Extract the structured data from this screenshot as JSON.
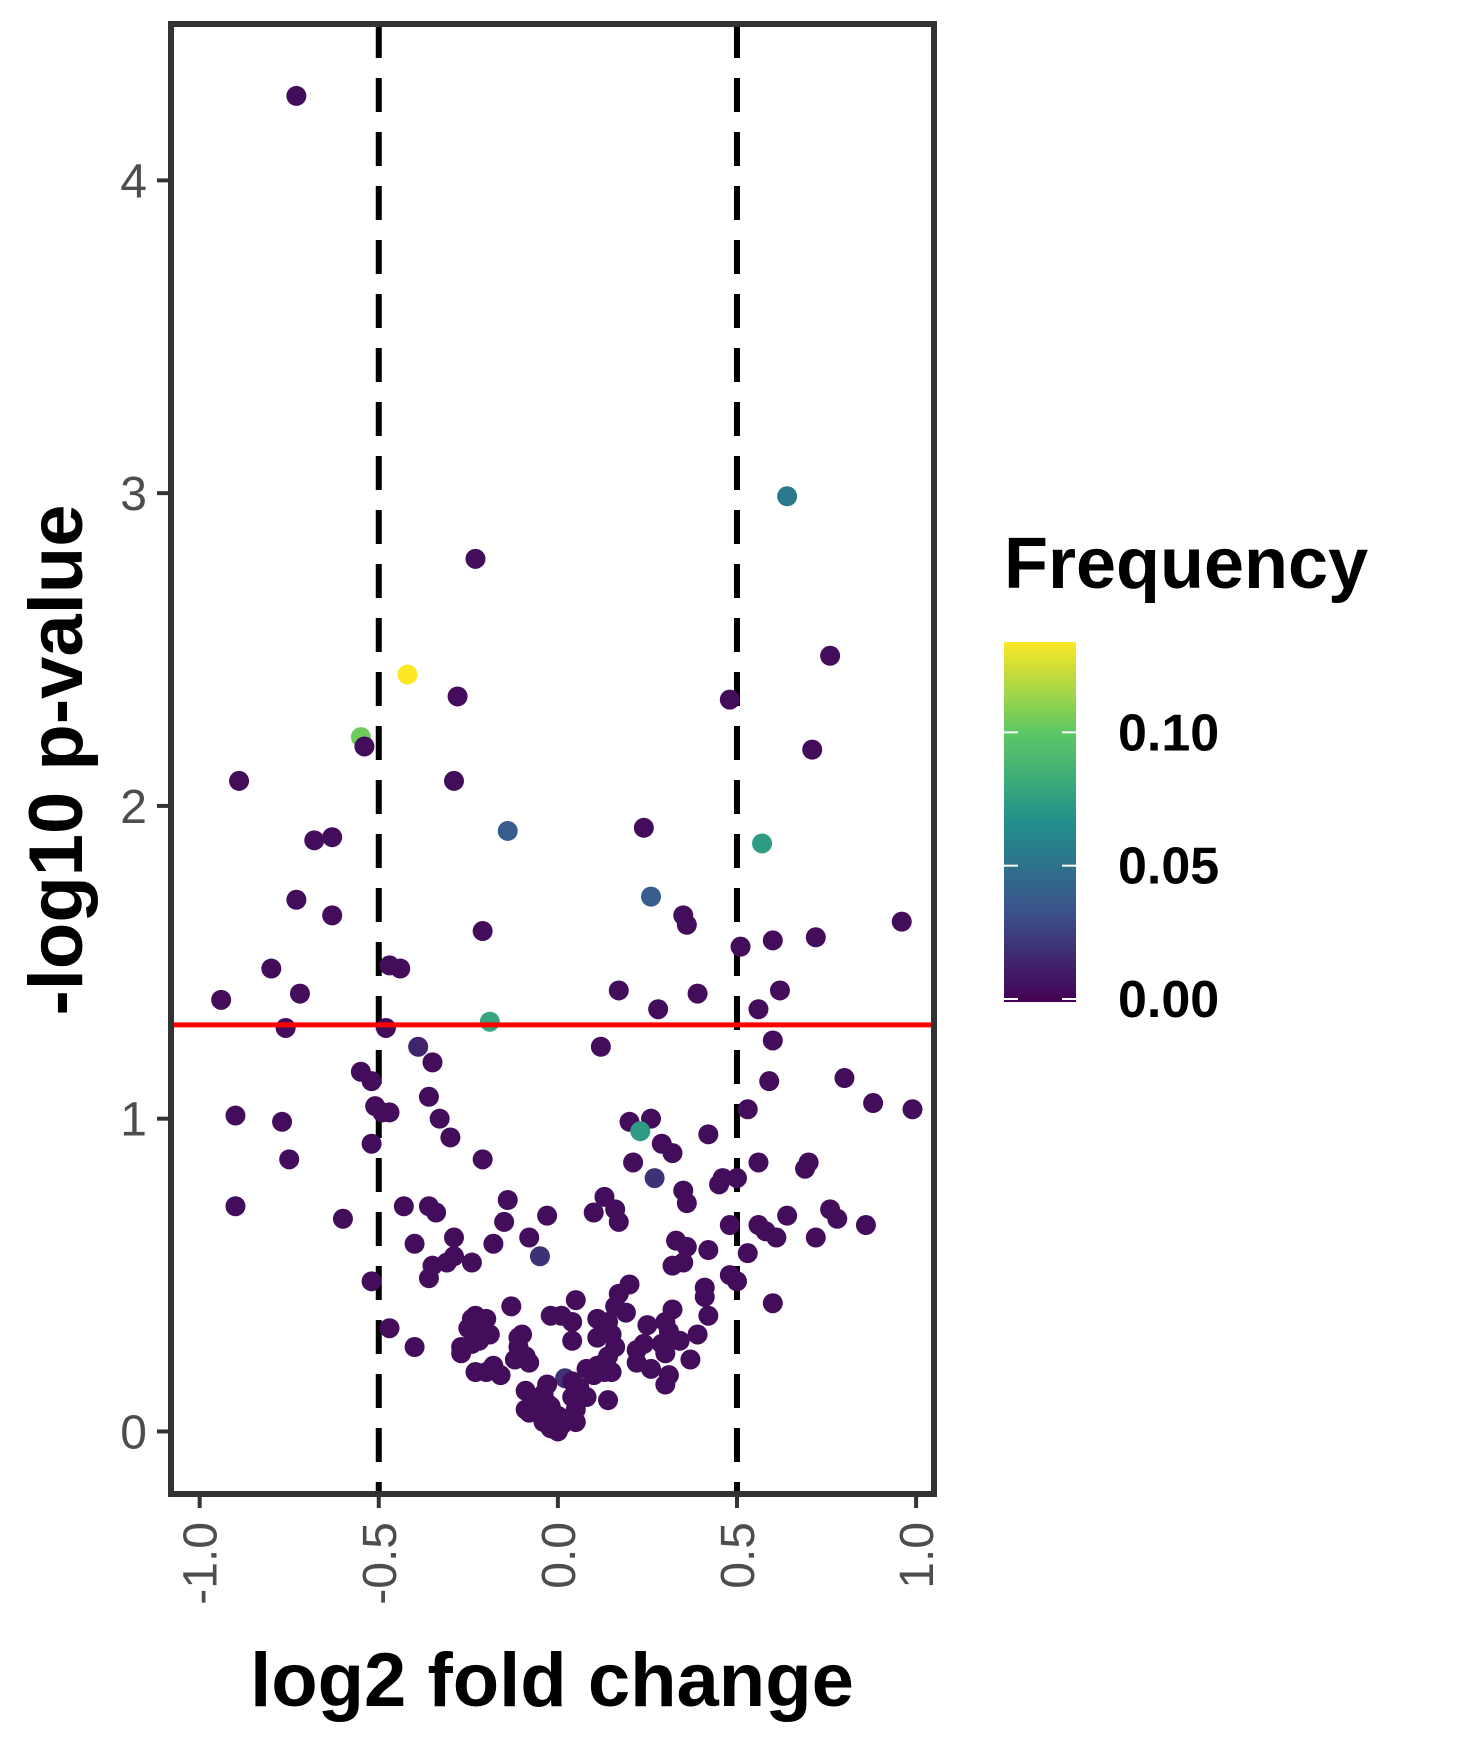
{
  "chart_data": {
    "type": "scatter",
    "xlabel": "log2 fold change",
    "ylabel": "-log10 p-value",
    "xlim": [
      -1.08,
      1.05
    ],
    "ylim": [
      -0.2,
      4.5
    ],
    "x_ticks": [
      -1.0,
      -0.5,
      0.0,
      0.5,
      1.0
    ],
    "x_tick_labels": [
      "-1.0",
      "-0.5",
      "0.0",
      "0.5",
      "1.0"
    ],
    "y_ticks": [
      0,
      1,
      2,
      3,
      4
    ],
    "y_tick_labels": [
      "0",
      "1",
      "2",
      "3",
      "4"
    ],
    "grid": false,
    "reference_lines": {
      "vertical_dashed": [
        -0.5,
        0.5
      ],
      "horizontal_red": 1.3,
      "vertical_color": "#000000",
      "horizontal_color": "#ff0000"
    },
    "color_scale": {
      "title": "Frequency",
      "palette": "viridis",
      "min": 0.0,
      "max": 0.135,
      "ticks": [
        0.0,
        0.05,
        0.1
      ],
      "tick_labels": [
        "0.00",
        "0.05",
        "0.10"
      ],
      "colors": [
        "#440154",
        "#3b528b",
        "#21908c",
        "#5dc863",
        "#fde725"
      ]
    },
    "points": [
      {
        "x": -0.73,
        "y": 4.27,
        "f": 0.005
      },
      {
        "x": 0.64,
        "y": 2.99,
        "f": 0.055
      },
      {
        "x": -0.23,
        "y": 2.79,
        "f": 0.005
      },
      {
        "x": 0.76,
        "y": 2.48,
        "f": 0.005
      },
      {
        "x": -0.42,
        "y": 2.42,
        "f": 0.135
      },
      {
        "x": -0.28,
        "y": 2.35,
        "f": 0.005
      },
      {
        "x": 0.48,
        "y": 2.34,
        "f": 0.005
      },
      {
        "x": -0.55,
        "y": 2.22,
        "f": 0.105
      },
      {
        "x": -0.54,
        "y": 2.19,
        "f": 0.005
      },
      {
        "x": 0.71,
        "y": 2.18,
        "f": 0.005
      },
      {
        "x": -0.89,
        "y": 2.08,
        "f": 0.005
      },
      {
        "x": -0.29,
        "y": 2.08,
        "f": 0.005
      },
      {
        "x": 0.24,
        "y": 1.93,
        "f": 0.005
      },
      {
        "x": -0.14,
        "y": 1.92,
        "f": 0.04
      },
      {
        "x": -0.63,
        "y": 1.9,
        "f": 0.005
      },
      {
        "x": -0.68,
        "y": 1.89,
        "f": 0.005
      },
      {
        "x": 0.57,
        "y": 1.88,
        "f": 0.075
      },
      {
        "x": -0.73,
        "y": 1.7,
        "f": 0.005
      },
      {
        "x": 0.26,
        "y": 1.71,
        "f": 0.04
      },
      {
        "x": -0.63,
        "y": 1.65,
        "f": 0.005
      },
      {
        "x": 0.35,
        "y": 1.65,
        "f": 0.005
      },
      {
        "x": 0.36,
        "y": 1.62,
        "f": 0.005
      },
      {
        "x": 0.96,
        "y": 1.63,
        "f": 0.005
      },
      {
        "x": -0.21,
        "y": 1.6,
        "f": 0.005
      },
      {
        "x": 0.6,
        "y": 1.57,
        "f": 0.005
      },
      {
        "x": 0.72,
        "y": 1.58,
        "f": 0.005
      },
      {
        "x": 0.51,
        "y": 1.55,
        "f": 0.005
      },
      {
        "x": -0.47,
        "y": 1.49,
        "f": 0.005
      },
      {
        "x": -0.44,
        "y": 1.48,
        "f": 0.005
      },
      {
        "x": -0.8,
        "y": 1.48,
        "f": 0.005
      },
      {
        "x": 0.17,
        "y": 1.41,
        "f": 0.005
      },
      {
        "x": 0.39,
        "y": 1.4,
        "f": 0.005
      },
      {
        "x": 0.62,
        "y": 1.41,
        "f": 0.005
      },
      {
        "x": -0.72,
        "y": 1.4,
        "f": 0.005
      },
      {
        "x": -0.94,
        "y": 1.38,
        "f": 0.005
      },
      {
        "x": 0.28,
        "y": 1.35,
        "f": 0.005
      },
      {
        "x": 0.56,
        "y": 1.35,
        "f": 0.005
      },
      {
        "x": -0.19,
        "y": 1.31,
        "f": 0.08
      },
      {
        "x": -0.48,
        "y": 1.29,
        "f": 0.005
      },
      {
        "x": -0.76,
        "y": 1.29,
        "f": 0.005
      },
      {
        "x": 0.6,
        "y": 1.25,
        "f": 0.005
      },
      {
        "x": 0.12,
        "y": 1.23,
        "f": 0.005
      },
      {
        "x": -0.39,
        "y": 1.23,
        "f": 0.015
      },
      {
        "x": -0.35,
        "y": 1.18,
        "f": 0.005
      },
      {
        "x": -0.55,
        "y": 1.15,
        "f": 0.005
      },
      {
        "x": -0.52,
        "y": 1.12,
        "f": 0.005
      },
      {
        "x": 0.59,
        "y": 1.12,
        "f": 0.005
      },
      {
        "x": 0.8,
        "y": 1.13,
        "f": 0.005
      },
      {
        "x": -0.36,
        "y": 1.07,
        "f": 0.005
      },
      {
        "x": 0.88,
        "y": 1.05,
        "f": 0.005
      },
      {
        "x": -0.51,
        "y": 1.04,
        "f": 0.005
      },
      {
        "x": 0.99,
        "y": 1.03,
        "f": 0.005
      },
      {
        "x": -0.49,
        "y": 1.02,
        "f": 0.005
      },
      {
        "x": -0.47,
        "y": 1.02,
        "f": 0.005
      },
      {
        "x": 0.53,
        "y": 1.03,
        "f": 0.005
      },
      {
        "x": -0.9,
        "y": 1.01,
        "f": 0.005
      },
      {
        "x": 0.26,
        "y": 1.0,
        "f": 0.005
      },
      {
        "x": -0.33,
        "y": 1.0,
        "f": 0.005
      },
      {
        "x": 0.2,
        "y": 0.99,
        "f": 0.005
      },
      {
        "x": -0.77,
        "y": 0.99,
        "f": 0.005
      },
      {
        "x": 0.23,
        "y": 0.96,
        "f": 0.075
      },
      {
        "x": 0.42,
        "y": 0.95,
        "f": 0.005
      },
      {
        "x": -0.3,
        "y": 0.94,
        "f": 0.005
      },
      {
        "x": 0.29,
        "y": 0.92,
        "f": 0.005
      },
      {
        "x": -0.52,
        "y": 0.92,
        "f": 0.005
      },
      {
        "x": 0.32,
        "y": 0.89,
        "f": 0.005
      },
      {
        "x": -0.75,
        "y": 0.87,
        "f": 0.005
      },
      {
        "x": -0.21,
        "y": 0.87,
        "f": 0.005
      },
      {
        "x": 0.21,
        "y": 0.86,
        "f": 0.005
      },
      {
        "x": 0.7,
        "y": 0.86,
        "f": 0.005
      },
      {
        "x": 0.56,
        "y": 0.86,
        "f": 0.005
      },
      {
        "x": 0.69,
        "y": 0.84,
        "f": 0.005
      },
      {
        "x": 0.27,
        "y": 0.81,
        "f": 0.02
      },
      {
        "x": 0.46,
        "y": 0.81,
        "f": 0.005
      },
      {
        "x": 0.5,
        "y": 0.81,
        "f": 0.005
      },
      {
        "x": 0.45,
        "y": 0.79,
        "f": 0.005
      },
      {
        "x": 0.35,
        "y": 0.77,
        "f": 0.005
      },
      {
        "x": 0.13,
        "y": 0.75,
        "f": 0.005
      },
      {
        "x": 0.36,
        "y": 0.73,
        "f": 0.005
      },
      {
        "x": -0.14,
        "y": 0.74,
        "f": 0.005
      },
      {
        "x": -0.9,
        "y": 0.72,
        "f": 0.005
      },
      {
        "x": -0.43,
        "y": 0.72,
        "f": 0.005
      },
      {
        "x": -0.36,
        "y": 0.72,
        "f": 0.005
      },
      {
        "x": 0.76,
        "y": 0.71,
        "f": 0.005
      },
      {
        "x": 0.16,
        "y": 0.71,
        "f": 0.005
      },
      {
        "x": 0.1,
        "y": 0.7,
        "f": 0.005
      },
      {
        "x": 0.64,
        "y": 0.69,
        "f": 0.005
      },
      {
        "x": -0.34,
        "y": 0.7,
        "f": 0.005
      },
      {
        "x": -0.03,
        "y": 0.69,
        "f": 0.005
      },
      {
        "x": -0.6,
        "y": 0.68,
        "f": 0.005
      },
      {
        "x": 0.78,
        "y": 0.68,
        "f": 0.005
      },
      {
        "x": 0.17,
        "y": 0.67,
        "f": 0.005
      },
      {
        "x": -0.15,
        "y": 0.67,
        "f": 0.005
      },
      {
        "x": 0.56,
        "y": 0.66,
        "f": 0.005
      },
      {
        "x": 0.86,
        "y": 0.66,
        "f": 0.005
      },
      {
        "x": 0.48,
        "y": 0.66,
        "f": 0.005
      },
      {
        "x": 0.58,
        "y": 0.64,
        "f": 0.005
      },
      {
        "x": 0.61,
        "y": 0.62,
        "f": 0.005
      },
      {
        "x": 0.72,
        "y": 0.62,
        "f": 0.005
      },
      {
        "x": -0.08,
        "y": 0.62,
        "f": 0.005
      },
      {
        "x": -0.29,
        "y": 0.62,
        "f": 0.005
      },
      {
        "x": 0.33,
        "y": 0.61,
        "f": 0.005
      },
      {
        "x": -0.18,
        "y": 0.6,
        "f": 0.005
      },
      {
        "x": -0.4,
        "y": 0.6,
        "f": 0.005
      },
      {
        "x": 0.36,
        "y": 0.59,
        "f": 0.005
      },
      {
        "x": 0.42,
        "y": 0.58,
        "f": 0.005
      },
      {
        "x": 0.53,
        "y": 0.57,
        "f": 0.005
      },
      {
        "x": -0.29,
        "y": 0.56,
        "f": 0.005
      },
      {
        "x": -0.05,
        "y": 0.56,
        "f": 0.02
      },
      {
        "x": -0.31,
        "y": 0.54,
        "f": 0.005
      },
      {
        "x": -0.24,
        "y": 0.54,
        "f": 0.005
      },
      {
        "x": 0.32,
        "y": 0.53,
        "f": 0.005
      },
      {
        "x": -0.35,
        "y": 0.53,
        "f": 0.005
      },
      {
        "x": 0.35,
        "y": 0.54,
        "f": 0.005
      },
      {
        "x": 0.48,
        "y": 0.5,
        "f": 0.005
      },
      {
        "x": -0.36,
        "y": 0.49,
        "f": 0.005
      },
      {
        "x": 0.5,
        "y": 0.48,
        "f": 0.005
      },
      {
        "x": -0.52,
        "y": 0.48,
        "f": 0.005
      },
      {
        "x": 0.2,
        "y": 0.47,
        "f": 0.005
      },
      {
        "x": 0.41,
        "y": 0.46,
        "f": 0.005
      },
      {
        "x": 0.17,
        "y": 0.44,
        "f": 0.005
      },
      {
        "x": 0.41,
        "y": 0.43,
        "f": 0.005
      },
      {
        "x": 0.05,
        "y": 0.42,
        "f": 0.005
      },
      {
        "x": 0.6,
        "y": 0.41,
        "f": 0.005
      },
      {
        "x": 0.16,
        "y": 0.4,
        "f": 0.005
      },
      {
        "x": -0.13,
        "y": 0.4,
        "f": 0.005
      },
      {
        "x": 0.32,
        "y": 0.39,
        "f": 0.005
      },
      {
        "x": 0.19,
        "y": 0.38,
        "f": 0.005
      },
      {
        "x": 0.42,
        "y": 0.37,
        "f": 0.005
      },
      {
        "x": -0.23,
        "y": 0.37,
        "f": 0.005
      },
      {
        "x": -0.02,
        "y": 0.37,
        "f": 0.005
      },
      {
        "x": 0.01,
        "y": 0.37,
        "f": 0.005
      },
      {
        "x": -0.24,
        "y": 0.36,
        "f": 0.005
      },
      {
        "x": -0.2,
        "y": 0.36,
        "f": 0.005
      },
      {
        "x": 0.11,
        "y": 0.36,
        "f": 0.005
      },
      {
        "x": 0.14,
        "y": 0.35,
        "f": 0.005
      },
      {
        "x": 0.3,
        "y": 0.35,
        "f": 0.005
      },
      {
        "x": 0.04,
        "y": 0.35,
        "f": 0.005
      },
      {
        "x": 0.25,
        "y": 0.34,
        "f": 0.005
      },
      {
        "x": -0.22,
        "y": 0.33,
        "f": 0.005
      },
      {
        "x": -0.47,
        "y": 0.33,
        "f": 0.005
      },
      {
        "x": -0.25,
        "y": 0.33,
        "f": 0.005
      },
      {
        "x": 0.31,
        "y": 0.32,
        "f": 0.005
      },
      {
        "x": 0.39,
        "y": 0.31,
        "f": 0.005
      },
      {
        "x": 0.15,
        "y": 0.31,
        "f": 0.005
      },
      {
        "x": -0.1,
        "y": 0.31,
        "f": 0.005
      },
      {
        "x": -0.19,
        "y": 0.31,
        "f": 0.005
      },
      {
        "x": -0.11,
        "y": 0.3,
        "f": 0.005
      },
      {
        "x": 0.11,
        "y": 0.3,
        "f": 0.005
      },
      {
        "x": -0.22,
        "y": 0.29,
        "f": 0.005
      },
      {
        "x": 0.04,
        "y": 0.29,
        "f": 0.005
      },
      {
        "x": 0.34,
        "y": 0.29,
        "f": 0.005
      },
      {
        "x": 0.24,
        "y": 0.28,
        "f": 0.005
      },
      {
        "x": 0.29,
        "y": 0.28,
        "f": 0.005
      },
      {
        "x": -0.24,
        "y": 0.28,
        "f": 0.005
      },
      {
        "x": -0.4,
        "y": 0.27,
        "f": 0.005
      },
      {
        "x": -0.11,
        "y": 0.27,
        "f": 0.005
      },
      {
        "x": 0.16,
        "y": 0.27,
        "f": 0.005
      },
      {
        "x": -0.27,
        "y": 0.27,
        "f": 0.005
      },
      {
        "x": 0.22,
        "y": 0.26,
        "f": 0.005
      },
      {
        "x": 0.3,
        "y": 0.25,
        "f": 0.005
      },
      {
        "x": -0.27,
        "y": 0.25,
        "f": 0.005
      },
      {
        "x": -0.09,
        "y": 0.24,
        "f": 0.005
      },
      {
        "x": 0.14,
        "y": 0.24,
        "f": 0.005
      },
      {
        "x": -0.12,
        "y": 0.23,
        "f": 0.005
      },
      {
        "x": 0.37,
        "y": 0.23,
        "f": 0.005
      },
      {
        "x": 0.22,
        "y": 0.22,
        "f": 0.005
      },
      {
        "x": 0.13,
        "y": 0.22,
        "f": 0.005
      },
      {
        "x": -0.08,
        "y": 0.22,
        "f": 0.005
      },
      {
        "x": -0.18,
        "y": 0.21,
        "f": 0.005
      },
      {
        "x": 0.11,
        "y": 0.21,
        "f": 0.005
      },
      {
        "x": 0.08,
        "y": 0.2,
        "f": 0.005
      },
      {
        "x": 0.26,
        "y": 0.2,
        "f": 0.005
      },
      {
        "x": -0.23,
        "y": 0.19,
        "f": 0.005
      },
      {
        "x": 0.15,
        "y": 0.19,
        "f": 0.005
      },
      {
        "x": -0.2,
        "y": 0.19,
        "f": 0.005
      },
      {
        "x": 0.13,
        "y": 0.19,
        "f": 0.005
      },
      {
        "x": -0.16,
        "y": 0.18,
        "f": 0.005
      },
      {
        "x": 0.1,
        "y": 0.18,
        "f": 0.005
      },
      {
        "x": 0.31,
        "y": 0.18,
        "f": 0.005
      },
      {
        "x": 0.02,
        "y": 0.17,
        "f": 0.02
      },
      {
        "x": 0.04,
        "y": 0.16,
        "f": 0.005
      },
      {
        "x": -0.03,
        "y": 0.15,
        "f": 0.005
      },
      {
        "x": 0.3,
        "y": 0.15,
        "f": 0.005
      },
      {
        "x": 0.06,
        "y": 0.14,
        "f": 0.005
      },
      {
        "x": -0.09,
        "y": 0.13,
        "f": 0.005
      },
      {
        "x": -0.04,
        "y": 0.12,
        "f": 0.005
      },
      {
        "x": 0.08,
        "y": 0.11,
        "f": 0.005
      },
      {
        "x": 0.04,
        "y": 0.11,
        "f": 0.005
      },
      {
        "x": -0.07,
        "y": 0.1,
        "f": 0.005
      },
      {
        "x": 0.14,
        "y": 0.1,
        "f": 0.005
      },
      {
        "x": -0.03,
        "y": 0.09,
        "f": 0.005
      },
      {
        "x": -0.02,
        "y": 0.08,
        "f": 0.005
      },
      {
        "x": -0.09,
        "y": 0.07,
        "f": 0.005
      },
      {
        "x": 0.05,
        "y": 0.07,
        "f": 0.005
      },
      {
        "x": -0.05,
        "y": 0.06,
        "f": 0.005
      },
      {
        "x": -0.08,
        "y": 0.06,
        "f": 0.005
      },
      {
        "x": 0.0,
        "y": 0.05,
        "f": 0.005
      },
      {
        "x": 0.02,
        "y": 0.04,
        "f": 0.005
      },
      {
        "x": -0.04,
        "y": 0.03,
        "f": 0.005
      },
      {
        "x": 0.05,
        "y": 0.03,
        "f": 0.005
      },
      {
        "x": 0.01,
        "y": 0.02,
        "f": 0.005
      },
      {
        "x": -0.02,
        "y": 0.01,
        "f": 0.005
      },
      {
        "x": 0.0,
        "y": 0.0,
        "f": 0.005
      }
    ]
  }
}
